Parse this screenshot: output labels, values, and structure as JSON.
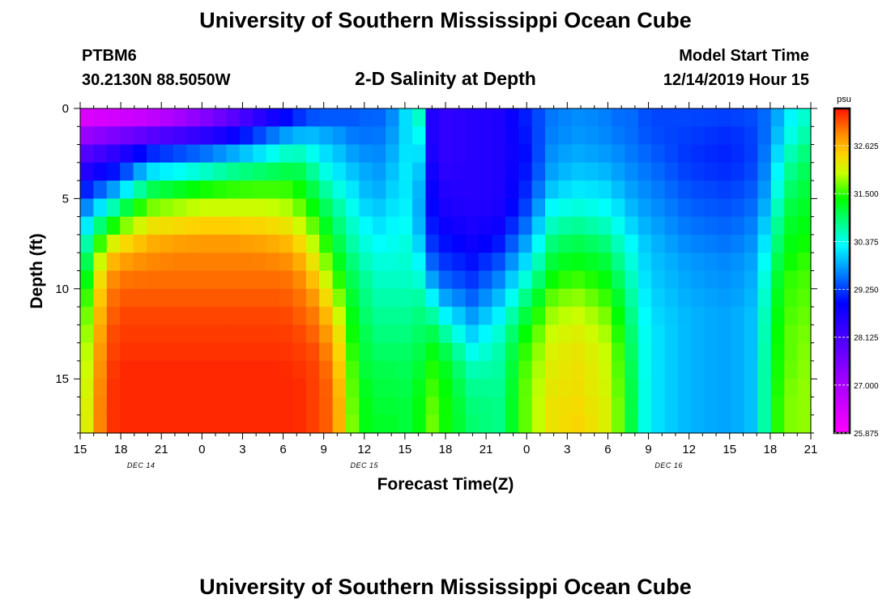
{
  "header": {
    "title": "University of Southern Mississippi Ocean Cube",
    "station": "PTBM6",
    "coords": "30.2130N 88.5050W",
    "subtitle": "2-D Salinity at Depth",
    "model_start_label": "Model Start Time",
    "model_start_value": "12/14/2019 Hour 15"
  },
  "footer": {
    "title": "University of Southern Mississippi Ocean Cube"
  },
  "chart_data": {
    "type": "heatmap",
    "title": "2-D Salinity at Depth",
    "xlabel": "Forecast Time(Z)",
    "ylabel": "Depth (ft)",
    "x_range_hours": [
      0,
      54
    ],
    "y_range_ft": [
      0,
      18
    ],
    "x_ticks": [
      {
        "hour": 0,
        "label": "15"
      },
      {
        "hour": 3,
        "label": "18"
      },
      {
        "hour": 6,
        "label": "21"
      },
      {
        "hour": 9,
        "label": "0"
      },
      {
        "hour": 12,
        "label": "3"
      },
      {
        "hour": 15,
        "label": "6"
      },
      {
        "hour": 18,
        "label": "9"
      },
      {
        "hour": 21,
        "label": "12"
      },
      {
        "hour": 24,
        "label": "15"
      },
      {
        "hour": 27,
        "label": "18"
      },
      {
        "hour": 30,
        "label": "21"
      },
      {
        "hour": 33,
        "label": "0"
      },
      {
        "hour": 36,
        "label": "3"
      },
      {
        "hour": 39,
        "label": "6"
      },
      {
        "hour": 42,
        "label": "9"
      },
      {
        "hour": 45,
        "label": "12"
      },
      {
        "hour": 48,
        "label": "15"
      },
      {
        "hour": 51,
        "label": "18"
      },
      {
        "hour": 54,
        "label": "21"
      }
    ],
    "date_labels": [
      {
        "hour": 4.5,
        "label": "DEC 14"
      },
      {
        "hour": 21,
        "label": "DEC 15"
      },
      {
        "hour": 43.5,
        "label": "DEC 16"
      }
    ],
    "y_ticks": [
      {
        "depth": 0,
        "label": "0"
      },
      {
        "depth": 5,
        "label": "5"
      },
      {
        "depth": 10,
        "label": "10"
      },
      {
        "depth": 15,
        "label": "15"
      }
    ],
    "colorbar": {
      "unit": "psu",
      "min": 25.875,
      "max": 33.5,
      "ticks": [
        "25.875",
        "27.000",
        "28.125",
        "29.250",
        "30.375",
        "31.500",
        "32.625"
      ]
    },
    "n_cols": 55,
    "n_rows": 18,
    "depth_points_ft": [
      0,
      1,
      2,
      3,
      4,
      5,
      6,
      7,
      8,
      9,
      10,
      11,
      12,
      13,
      14,
      15,
      16,
      17
    ],
    "time_profiles": [
      {
        "hour": 0,
        "salinity": [
          26.0,
          26.7,
          27.6,
          28.2,
          28.6,
          29.2,
          29.6,
          30.0,
          30.4,
          30.6,
          30.9,
          31.1,
          31.3,
          31.4,
          31.5,
          31.6,
          31.6,
          31.7
        ]
      },
      {
        "hour": 1,
        "salinity": [
          26.0,
          26.8,
          27.8,
          28.4,
          29.0,
          29.6,
          30.3,
          30.9,
          31.4,
          31.8,
          32.0,
          32.2,
          32.3,
          32.4,
          32.5,
          32.5,
          32.6,
          32.6
        ]
      },
      {
        "hour": 2,
        "salinity": [
          26.0,
          26.9,
          28.0,
          28.6,
          29.2,
          30.0,
          30.8,
          31.6,
          32.3,
          32.7,
          32.9,
          33.0,
          33.1,
          33.2,
          33.2,
          33.3,
          33.3,
          33.3
        ]
      },
      {
        "hour": 3,
        "salinity": [
          26.0,
          27.0,
          28.2,
          28.8,
          29.5,
          30.5,
          31.3,
          32.0,
          32.6,
          32.9,
          33.1,
          33.2,
          33.3,
          33.3,
          33.4,
          33.4,
          33.4,
          33.4
        ]
      },
      {
        "hour": 5,
        "salinity": [
          26.1,
          27.2,
          28.6,
          29.6,
          30.6,
          31.4,
          32.0,
          32.5,
          32.8,
          33.0,
          33.1,
          33.2,
          33.3,
          33.3,
          33.4,
          33.4,
          33.4,
          33.4
        ]
      },
      {
        "hour": 7,
        "salinity": [
          26.5,
          27.5,
          28.8,
          29.8,
          30.8,
          31.6,
          32.1,
          32.6,
          32.9,
          33.0,
          33.1,
          33.2,
          33.3,
          33.3,
          33.4,
          33.4,
          33.4,
          33.4
        ]
      },
      {
        "hour": 9,
        "salinity": [
          27.0,
          27.8,
          29.0,
          30.0,
          31.0,
          31.8,
          32.2,
          32.7,
          32.9,
          33.0,
          33.1,
          33.2,
          33.3,
          33.3,
          33.4,
          33.4,
          33.4,
          33.4
        ]
      },
      {
        "hour": 11,
        "salinity": [
          27.5,
          28.2,
          29.3,
          30.3,
          31.2,
          31.8,
          32.2,
          32.7,
          32.9,
          33.0,
          33.1,
          33.2,
          33.3,
          33.3,
          33.4,
          33.4,
          33.4,
          33.4
        ]
      },
      {
        "hour": 13,
        "salinity": [
          28.0,
          28.8,
          29.7,
          30.5,
          31.3,
          31.8,
          32.2,
          32.6,
          32.9,
          33.0,
          33.1,
          33.2,
          33.3,
          33.3,
          33.4,
          33.4,
          33.4,
          33.4
        ]
      },
      {
        "hour": 15,
        "salinity": [
          28.5,
          29.3,
          30.2,
          30.8,
          31.3,
          31.8,
          32.1,
          32.5,
          32.8,
          33.0,
          33.1,
          33.2,
          33.3,
          33.3,
          33.4,
          33.4,
          33.4,
          33.4
        ]
      },
      {
        "hour": 16,
        "salinity": [
          28.8,
          29.5,
          30.3,
          30.9,
          31.3,
          31.6,
          31.9,
          32.3,
          32.6,
          32.9,
          33.0,
          33.1,
          33.2,
          33.3,
          33.3,
          33.4,
          33.4,
          33.4
        ]
      },
      {
        "hour": 17,
        "salinity": [
          29.0,
          29.7,
          30.2,
          30.6,
          31.0,
          31.3,
          31.6,
          31.9,
          32.2,
          32.5,
          32.8,
          33.0,
          33.1,
          33.2,
          33.3,
          33.3,
          33.3,
          33.3
        ]
      },
      {
        "hour": 18,
        "salinity": [
          29.1,
          29.7,
          30.0,
          30.3,
          30.6,
          30.9,
          31.2,
          31.4,
          31.7,
          32.0,
          32.3,
          32.6,
          32.8,
          33.0,
          33.1,
          33.2,
          33.2,
          33.2
        ]
      },
      {
        "hour": 19,
        "salinity": [
          29.2,
          29.6,
          29.9,
          30.1,
          30.3,
          30.6,
          30.8,
          31.0,
          31.2,
          31.4,
          31.7,
          32.0,
          32.3,
          32.5,
          32.6,
          32.7,
          32.8,
          32.8
        ]
      },
      {
        "hour": 20,
        "salinity": [
          29.3,
          29.5,
          29.7,
          29.9,
          30.1,
          30.3,
          30.5,
          30.6,
          30.8,
          31.0,
          31.1,
          31.3,
          31.4,
          31.5,
          31.6,
          31.7,
          31.7,
          31.8
        ]
      },
      {
        "hour": 21,
        "salinity": [
          29.4,
          29.5,
          29.6,
          29.8,
          29.9,
          30.0,
          30.2,
          30.4,
          30.5,
          30.7,
          30.8,
          30.9,
          31.0,
          31.1,
          31.1,
          31.2,
          31.3,
          31.3
        ]
      },
      {
        "hour": 22,
        "salinity": [
          29.4,
          29.5,
          29.6,
          29.7,
          29.8,
          29.9,
          30.1,
          30.2,
          30.4,
          30.5,
          30.6,
          30.7,
          30.8,
          30.9,
          31.0,
          31.1,
          31.1,
          31.2
        ]
      },
      {
        "hour": 23,
        "salinity": [
          29.6,
          29.7,
          29.8,
          29.9,
          30.0,
          30.1,
          30.2,
          30.3,
          30.4,
          30.5,
          30.6,
          30.7,
          30.8,
          30.9,
          31.0,
          31.1,
          31.1,
          31.2
        ]
      },
      {
        "hour": 24,
        "salinity": [
          30.1,
          30.1,
          30.1,
          30.2,
          30.2,
          30.2,
          30.3,
          30.4,
          30.5,
          30.5,
          30.6,
          30.7,
          30.8,
          30.9,
          31.0,
          31.0,
          31.1,
          31.1
        ]
      },
      {
        "hour": 25,
        "salinity": [
          30.7,
          30.5,
          30.3,
          30.1,
          30.0,
          29.9,
          29.9,
          30.0,
          30.2,
          30.4,
          30.6,
          30.8,
          30.9,
          31.0,
          31.1,
          31.2,
          31.3,
          31.3
        ]
      },
      {
        "hour": 26,
        "salinity": [
          28.6,
          28.6,
          28.6,
          28.7,
          28.8,
          28.9,
          29.0,
          29.1,
          29.3,
          29.6,
          30.0,
          30.5,
          30.9,
          31.2,
          31.4,
          31.5,
          31.6,
          31.7
        ]
      },
      {
        "hour": 27,
        "salinity": [
          28.4,
          28.4,
          28.4,
          28.4,
          28.5,
          28.6,
          28.7,
          28.9,
          29.1,
          29.3,
          29.6,
          30.0,
          30.5,
          30.9,
          31.2,
          31.3,
          31.4,
          31.4
        ]
      },
      {
        "hour": 29,
        "salinity": [
          28.5,
          28.5,
          28.5,
          28.5,
          28.5,
          28.5,
          28.6,
          28.7,
          28.9,
          29.1,
          29.3,
          29.6,
          29.9,
          30.2,
          30.5,
          30.7,
          30.8,
          30.9
        ]
      },
      {
        "hour": 31,
        "salinity": [
          28.6,
          28.6,
          28.6,
          28.6,
          28.6,
          28.6,
          28.7,
          28.9,
          29.2,
          29.5,
          29.8,
          30.1,
          30.4,
          30.6,
          30.7,
          30.7,
          30.8,
          30.8
        ]
      },
      {
        "hour": 33,
        "salinity": [
          29.1,
          29.1,
          29.0,
          29.0,
          29.1,
          29.2,
          29.4,
          29.7,
          30.0,
          30.3,
          30.7,
          31.0,
          31.3,
          31.5,
          31.6,
          31.7,
          31.7,
          31.7
        ]
      },
      {
        "hour": 35,
        "salinity": [
          29.6,
          29.6,
          29.7,
          29.8,
          29.9,
          30.2,
          30.5,
          30.8,
          31.1,
          31.3,
          31.6,
          31.8,
          32.0,
          32.1,
          32.2,
          32.2,
          32.3,
          32.3
        ]
      },
      {
        "hour": 37,
        "salinity": [
          29.7,
          29.7,
          29.8,
          29.9,
          30.1,
          30.3,
          30.6,
          30.9,
          31.2,
          31.4,
          31.7,
          31.9,
          32.1,
          32.2,
          32.3,
          32.3,
          32.3,
          32.4
        ]
      },
      {
        "hour": 39,
        "salinity": [
          29.6,
          29.6,
          29.7,
          29.8,
          30.0,
          30.2,
          30.4,
          30.7,
          31.0,
          31.2,
          31.4,
          31.6,
          31.8,
          31.9,
          32.0,
          32.0,
          32.1,
          32.1
        ]
      },
      {
        "hour": 40,
        "salinity": [
          29.5,
          29.5,
          29.6,
          29.7,
          29.8,
          30.0,
          30.2,
          30.4,
          30.6,
          30.8,
          31.0,
          31.2,
          31.3,
          31.4,
          31.5,
          31.5,
          31.6,
          31.6
        ]
      },
      {
        "hour": 41,
        "salinity": [
          29.5,
          29.5,
          29.5,
          29.6,
          29.7,
          29.8,
          29.9,
          30.1,
          30.3,
          30.4,
          30.5,
          30.6,
          30.7,
          30.8,
          30.8,
          30.9,
          30.9,
          30.9
        ]
      },
      {
        "hour": 42,
        "salinity": [
          29.3,
          29.3,
          29.4,
          29.5,
          29.6,
          29.7,
          29.8,
          29.9,
          30.0,
          30.0,
          30.1,
          30.1,
          30.2,
          30.2,
          30.2,
          30.2,
          30.2,
          30.2
        ]
      },
      {
        "hour": 45,
        "salinity": [
          29.3,
          29.3,
          29.2,
          29.2,
          29.3,
          29.4,
          29.5,
          29.6,
          29.7,
          29.8,
          29.8,
          29.9,
          29.9,
          29.9,
          29.9,
          29.9,
          29.9,
          29.9
        ]
      },
      {
        "hour": 48,
        "salinity": [
          29.3,
          29.2,
          29.1,
          29.1,
          29.2,
          29.3,
          29.4,
          29.5,
          29.6,
          29.7,
          29.7,
          29.8,
          29.8,
          29.8,
          29.8,
          29.8,
          29.8,
          29.8
        ]
      },
      {
        "hour": 50,
        "salinity": [
          29.4,
          29.3,
          29.3,
          29.3,
          29.4,
          29.5,
          29.6,
          29.7,
          29.8,
          29.9,
          29.9,
          30.0,
          30.0,
          30.0,
          30.0,
          30.0,
          30.0,
          30.0
        ]
      },
      {
        "hour": 51,
        "salinity": [
          29.6,
          29.6,
          29.7,
          29.8,
          29.9,
          30.0,
          30.2,
          30.4,
          30.6,
          30.8,
          30.9,
          31.0,
          31.1,
          31.1,
          31.2,
          31.2,
          31.2,
          31.2
        ]
      },
      {
        "hour": 52,
        "salinity": [
          30.0,
          30.1,
          30.3,
          30.5,
          30.7,
          30.9,
          31.1,
          31.2,
          31.3,
          31.4,
          31.5,
          31.5,
          31.6,
          31.6,
          31.6,
          31.6,
          31.7,
          31.7
        ]
      },
      {
        "hour": 53,
        "salinity": [
          30.4,
          30.5,
          30.7,
          30.9,
          31.0,
          31.1,
          31.2,
          31.3,
          31.4,
          31.5,
          31.6,
          31.6,
          31.7,
          31.7,
          31.7,
          31.8,
          31.8,
          31.8
        ]
      },
      {
        "hour": 54,
        "salinity": [
          30.5,
          30.6,
          30.8,
          31.0,
          31.1,
          31.2,
          31.3,
          31.4,
          31.5,
          31.6,
          31.6,
          31.7,
          31.7,
          31.8,
          31.8,
          31.8,
          31.8,
          31.8
        ]
      }
    ]
  }
}
